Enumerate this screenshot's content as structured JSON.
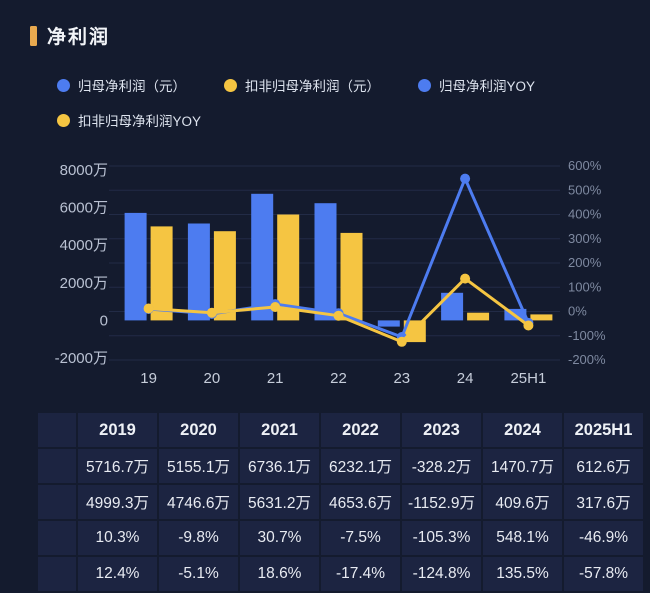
{
  "title": "净利润",
  "colors": {
    "blue": "#4d7cf0",
    "yellow": "#f5c542",
    "accent": "#e8a94f",
    "background": "#141b2e",
    "cell_background": "#1c2441",
    "grid": "#222b46"
  },
  "legend": [
    {
      "label": "归母净利润（元）",
      "color": "#4d7cf0"
    },
    {
      "label": "扣非归母净利润（元）",
      "color": "#f5c542"
    },
    {
      "label": "归母净利润YOY",
      "color": "#4d7cf0"
    },
    {
      "label": "扣非归母净利润YOY",
      "color": "#f5c542"
    }
  ],
  "chart_data": {
    "type": "bar",
    "subtype": "combo-bar-line",
    "title": "净利润",
    "categories": [
      "19",
      "20",
      "21",
      "22",
      "23",
      "24",
      "25H1"
    ],
    "series": [
      {
        "name": "归母净利润（元）",
        "kind": "bar",
        "axis": "left",
        "unit": "万",
        "color": "#4d7cf0",
        "values": [
          5716.7,
          5155.1,
          6736.1,
          6232.1,
          -328.2,
          1470.7,
          612.6
        ]
      },
      {
        "name": "扣非归母净利润（元）",
        "kind": "bar",
        "axis": "left",
        "unit": "万",
        "color": "#f5c542",
        "values": [
          4999.3,
          4746.6,
          5631.2,
          4653.6,
          -1152.9,
          409.6,
          317.6
        ]
      },
      {
        "name": "归母净利润YOY",
        "kind": "line",
        "axis": "right",
        "unit": "%",
        "color": "#4d7cf0",
        "values": [
          10.3,
          -9.8,
          30.7,
          -7.5,
          -105.3,
          548.1,
          -46.9
        ]
      },
      {
        "name": "扣非归母净利润YOY",
        "kind": "line",
        "axis": "right",
        "unit": "%",
        "color": "#f5c542",
        "values": [
          12.4,
          -5.1,
          18.6,
          -17.4,
          -124.8,
          135.5,
          -57.8
        ]
      }
    ],
    "left_axis": {
      "min": -2000,
      "max": 8000,
      "ticks": [
        8000,
        6000,
        4000,
        2000,
        0,
        -2000
      ],
      "labels": [
        "8000万",
        "6000万",
        "4000万",
        "2000万",
        "0",
        "-2000万"
      ]
    },
    "right_axis": {
      "min": -200,
      "max": 600,
      "ticks": [
        600,
        500,
        400,
        300,
        200,
        100,
        0,
        -100,
        -200
      ],
      "labels": [
        "600%",
        "500%",
        "400%",
        "300%",
        "200%",
        "100%",
        "0%",
        "-100%",
        "-200%"
      ]
    },
    "grid": true,
    "legend_position": "top"
  },
  "table": {
    "header": [
      "2019",
      "2020",
      "2021",
      "2022",
      "2023",
      "2024",
      "2025H1"
    ],
    "rows": [
      {
        "dot_color": "#4d7cf0",
        "cells": [
          "5716.7万",
          "5155.1万",
          "6736.1万",
          "6232.1万",
          "-328.2万",
          "1470.7万",
          "612.6万"
        ]
      },
      {
        "dot_color": "#f5c542",
        "cells": [
          "4999.3万",
          "4746.6万",
          "5631.2万",
          "4653.6万",
          "-1152.9万",
          "409.6万",
          "317.6万"
        ]
      },
      {
        "dot_color": "#4d7cf0",
        "cells": [
          "10.3%",
          "-9.8%",
          "30.7%",
          "-7.5%",
          "-105.3%",
          "548.1%",
          "-46.9%"
        ]
      },
      {
        "dot_color": "#f5c542",
        "cells": [
          "12.4%",
          "-5.1%",
          "18.6%",
          "-17.4%",
          "-124.8%",
          "135.5%",
          "-57.8%"
        ]
      }
    ]
  }
}
